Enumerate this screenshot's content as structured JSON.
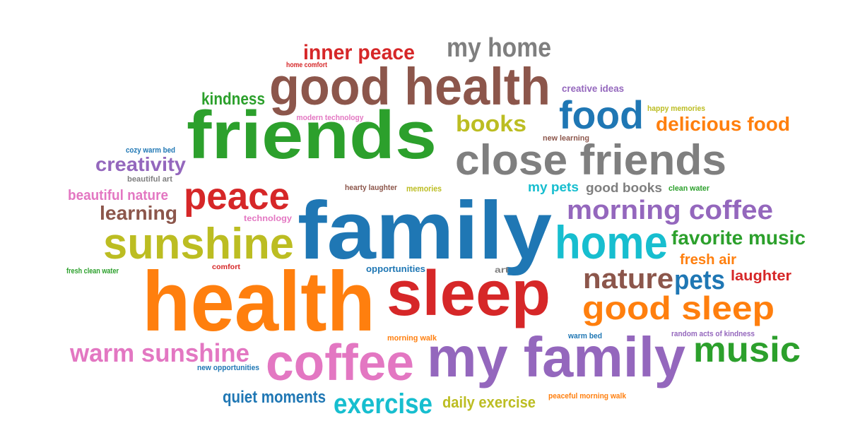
{
  "palette": {
    "red": "#d62728",
    "gray": "#7f7f7f",
    "brown": "#8c564b",
    "green": "#2ca02c",
    "blue": "#1f77b4",
    "orange": "#ff7f0e",
    "olive": "#bcbd22",
    "purple": "#9467bd",
    "pink": "#e377c2",
    "cyan": "#17becf"
  },
  "words": [
    {
      "text": "inner peace",
      "color": "red"
    },
    {
      "text": "my home",
      "color": "gray"
    },
    {
      "text": "home comfort",
      "color": "red"
    },
    {
      "text": "good health",
      "color": "brown"
    },
    {
      "text": "creative ideas",
      "color": "purple"
    },
    {
      "text": "kindness",
      "color": "green"
    },
    {
      "text": "food",
      "color": "blue"
    },
    {
      "text": "happy memories",
      "color": "olive"
    },
    {
      "text": "modern technology",
      "color": "pink"
    },
    {
      "text": "friends",
      "color": "green"
    },
    {
      "text": "books",
      "color": "olive"
    },
    {
      "text": "delicious food",
      "color": "orange"
    },
    {
      "text": "new learning",
      "color": "brown"
    },
    {
      "text": "cozy warm bed",
      "color": "blue"
    },
    {
      "text": "close friends",
      "color": "gray"
    },
    {
      "text": "creativity",
      "color": "purple"
    },
    {
      "text": "beautiful art",
      "color": "gray"
    },
    {
      "text": "hearty laughter",
      "color": "brown"
    },
    {
      "text": "memories",
      "color": "olive"
    },
    {
      "text": "my pets",
      "color": "cyan"
    },
    {
      "text": "good books",
      "color": "gray"
    },
    {
      "text": "clean water",
      "color": "green"
    },
    {
      "text": "beautiful nature",
      "color": "pink"
    },
    {
      "text": "peace",
      "color": "red"
    },
    {
      "text": "learning",
      "color": "brown"
    },
    {
      "text": "family",
      "color": "blue"
    },
    {
      "text": "morning coffee",
      "color": "purple"
    },
    {
      "text": "technology",
      "color": "pink"
    },
    {
      "text": "sunshine",
      "color": "olive"
    },
    {
      "text": "home",
      "color": "cyan"
    },
    {
      "text": "favorite music",
      "color": "green"
    },
    {
      "text": "fresh air",
      "color": "orange"
    },
    {
      "text": "comfort",
      "color": "red"
    },
    {
      "text": "fresh clean water",
      "color": "green"
    },
    {
      "text": "opportunities",
      "color": "blue"
    },
    {
      "text": "art",
      "color": "gray"
    },
    {
      "text": "nature",
      "color": "brown"
    },
    {
      "text": "pets",
      "color": "blue"
    },
    {
      "text": "laughter",
      "color": "red"
    },
    {
      "text": "health",
      "color": "orange"
    },
    {
      "text": "sleep",
      "color": "red"
    },
    {
      "text": "good sleep",
      "color": "orange"
    },
    {
      "text": "random acts of kindness",
      "color": "purple"
    },
    {
      "text": "morning walk",
      "color": "orange"
    },
    {
      "text": "warm bed",
      "color": "blue"
    },
    {
      "text": "warm sunshine",
      "color": "pink"
    },
    {
      "text": "music",
      "color": "green"
    },
    {
      "text": "new opportunities",
      "color": "blue"
    },
    {
      "text": "coffee",
      "color": "pink"
    },
    {
      "text": "my family",
      "color": "purple"
    },
    {
      "text": "quiet moments",
      "color": "blue"
    },
    {
      "text": "exercise",
      "color": "cyan"
    },
    {
      "text": "daily exercise",
      "color": "olive"
    },
    {
      "text": "peaceful morning walk",
      "color": "orange"
    }
  ]
}
